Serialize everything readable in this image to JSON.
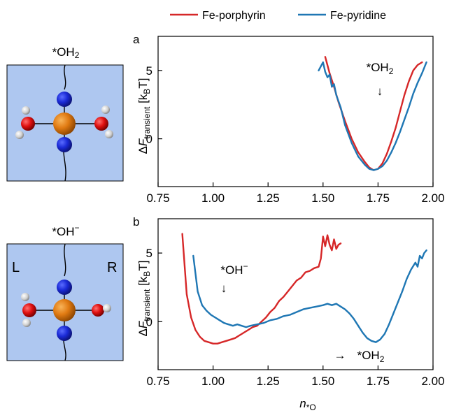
{
  "legend": [
    {
      "label": "Fe-porphyrin",
      "color": "#d62728"
    },
    {
      "label": "Fe-pyridine",
      "color": "#1f77b4"
    }
  ],
  "molecules": [
    {
      "label": "*OH₂",
      "side_labels": null
    },
    {
      "label": "*OH⁻",
      "side_labels": {
        "left": "L",
        "right": "R"
      }
    }
  ],
  "xlabel": "n⁎ O",
  "chart_data": [
    {
      "type": "line",
      "panel": "a",
      "ylabel": "ΔF transient [kBT]",
      "xlim": [
        0.75,
        2.0
      ],
      "ylim": [
        -3.5,
        7.5
      ],
      "xticks": [
        "0.75",
        "1.00",
        "1.25",
        "1.50",
        "1.75",
        "2.00"
      ],
      "yticks": [
        "5",
        "0"
      ],
      "annotations": [
        {
          "text": "*OH₂",
          "arrow": "↓"
        }
      ],
      "series": [
        {
          "name": "Fe-porphyrin",
          "color": "#d62728",
          "x": [
            1.51,
            1.53,
            1.55,
            1.57,
            1.6,
            1.63,
            1.66,
            1.69,
            1.71,
            1.73,
            1.75,
            1.77,
            1.79,
            1.81,
            1.83,
            1.85,
            1.87,
            1.89,
            1.91,
            1.93,
            1.95
          ],
          "y": [
            6.0,
            4.8,
            3.8,
            2.7,
            1.3,
            0.0,
            -1.0,
            -1.7,
            -2.1,
            -2.3,
            -2.2,
            -1.8,
            -1.1,
            -0.2,
            0.8,
            2.0,
            3.2,
            4.2,
            5.0,
            5.4,
            5.6
          ]
        },
        {
          "name": "Fe-pyridine",
          "color": "#1f77b4",
          "x": [
            1.48,
            1.5,
            1.51,
            1.52,
            1.53,
            1.54,
            1.55,
            1.56,
            1.58,
            1.6,
            1.63,
            1.66,
            1.69,
            1.71,
            1.73,
            1.75,
            1.77,
            1.79,
            1.81,
            1.83,
            1.85,
            1.87,
            1.89,
            1.91,
            1.93,
            1.95,
            1.97
          ],
          "y": [
            5.0,
            5.6,
            4.9,
            4.5,
            4.7,
            3.8,
            4.0,
            3.2,
            2.3,
            1.0,
            -0.3,
            -1.3,
            -1.9,
            -2.2,
            -2.3,
            -2.2,
            -2.0,
            -1.6,
            -1.0,
            -0.3,
            0.5,
            1.4,
            2.3,
            3.3,
            4.1,
            4.8,
            5.6
          ]
        }
      ]
    },
    {
      "type": "line",
      "panel": "b",
      "ylabel": "ΔF transient [kBT]",
      "xlim": [
        0.75,
        2.0
      ],
      "ylim": [
        -3.5,
        7.5
      ],
      "xticks": [
        "0.75",
        "1.00",
        "1.25",
        "1.50",
        "1.75",
        "2.00"
      ],
      "yticks": [
        "5",
        "0"
      ],
      "annotations": [
        {
          "text": "*OH⁻",
          "arrow": "↓"
        },
        {
          "text": "*OH₂",
          "arrow": "→"
        }
      ],
      "series": [
        {
          "name": "Fe-porphyrin",
          "color": "#d62728",
          "x": [
            0.86,
            0.88,
            0.9,
            0.92,
            0.94,
            0.96,
            0.98,
            1.0,
            1.02,
            1.04,
            1.06,
            1.08,
            1.1,
            1.12,
            1.14,
            1.16,
            1.18,
            1.2,
            1.22,
            1.24,
            1.26,
            1.28,
            1.3,
            1.32,
            1.34,
            1.36,
            1.38,
            1.4,
            1.42,
            1.44,
            1.46,
            1.48,
            1.49,
            1.5,
            1.51,
            1.52,
            1.53,
            1.54,
            1.55,
            1.56,
            1.57,
            1.58
          ],
          "y": [
            6.4,
            2.0,
            0.3,
            -0.6,
            -1.1,
            -1.4,
            -1.5,
            -1.6,
            -1.6,
            -1.5,
            -1.4,
            -1.3,
            -1.2,
            -1.0,
            -0.8,
            -0.6,
            -0.4,
            -0.3,
            0.0,
            0.3,
            0.7,
            1.0,
            1.5,
            1.8,
            2.2,
            2.6,
            3.0,
            3.2,
            3.6,
            3.7,
            3.9,
            4.0,
            4.6,
            6.2,
            5.5,
            6.3,
            5.6,
            5.2,
            6.0,
            5.3,
            5.6,
            5.7
          ]
        },
        {
          "name": "Fe-pyridine",
          "color": "#1f77b4",
          "x": [
            0.91,
            0.93,
            0.95,
            0.97,
            0.99,
            1.01,
            1.03,
            1.05,
            1.07,
            1.09,
            1.11,
            1.13,
            1.15,
            1.17,
            1.2,
            1.23,
            1.26,
            1.29,
            1.32,
            1.35,
            1.38,
            1.41,
            1.44,
            1.47,
            1.5,
            1.52,
            1.54,
            1.56,
            1.58,
            1.6,
            1.62,
            1.64,
            1.66,
            1.68,
            1.7,
            1.72,
            1.74,
            1.76,
            1.78,
            1.8,
            1.82,
            1.84,
            1.86,
            1.88,
            1.9,
            1.92,
            1.93,
            1.94,
            1.95,
            1.96,
            1.97
          ],
          "y": [
            4.8,
            2.2,
            1.2,
            0.8,
            0.5,
            0.3,
            0.1,
            -0.1,
            -0.2,
            -0.3,
            -0.2,
            -0.3,
            -0.4,
            -0.3,
            -0.2,
            -0.1,
            0.1,
            0.2,
            0.4,
            0.5,
            0.7,
            0.9,
            1.0,
            1.1,
            1.2,
            1.3,
            1.2,
            1.3,
            1.1,
            0.9,
            0.6,
            0.2,
            -0.3,
            -0.8,
            -1.2,
            -1.4,
            -1.5,
            -1.3,
            -0.9,
            -0.2,
            0.6,
            1.4,
            2.2,
            3.1,
            3.8,
            4.3,
            4.0,
            4.8,
            4.6,
            5.0,
            5.2
          ]
        }
      ]
    }
  ]
}
